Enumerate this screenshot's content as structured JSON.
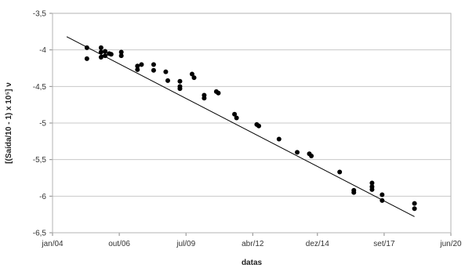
{
  "chart_data": {
    "type": "scatter",
    "xlabel": "datas",
    "ylabel": "[(Saída/10 - 1) x 10⁵] ν",
    "x_ticks": [
      "jan/04",
      "out/06",
      "jul/09",
      "abr/12",
      "dez/14",
      "set/17",
      "jun/20"
    ],
    "x_range": [
      "jan/04",
      "jun/20"
    ],
    "y_ticks": [
      "-3,5",
      "-4",
      "-4,5",
      "-5",
      "-5,5",
      "-6",
      "-6,5"
    ],
    "y_tick_values": [
      -3.5,
      -4,
      -4.5,
      -5,
      -5.5,
      -6,
      -6.5
    ],
    "ylim": [
      -6.5,
      -3.5
    ],
    "grid": "horizontal",
    "legend": "none",
    "point_color": "#000000",
    "trendline": {
      "start": {
        "x": "2004-08",
        "y": -3.82
      },
      "end": {
        "x": "2018-12",
        "y": -6.28
      },
      "color": "#000000"
    },
    "points": [
      {
        "x": "2005-06",
        "y": -3.97
      },
      {
        "x": "2005-06",
        "y": -4.12
      },
      {
        "x": "2006-01",
        "y": -3.97
      },
      {
        "x": "2006-01",
        "y": -4.03
      },
      {
        "x": "2006-01",
        "y": -4.1
      },
      {
        "x": "2006-03",
        "y": -4.02
      },
      {
        "x": "2006-03",
        "y": -4.08
      },
      {
        "x": "2006-05",
        "y": -4.05
      },
      {
        "x": "2006-06",
        "y": -4.06
      },
      {
        "x": "2006-11",
        "y": -4.03
      },
      {
        "x": "2006-11",
        "y": -4.08
      },
      {
        "x": "2007-07",
        "y": -4.22
      },
      {
        "x": "2007-07",
        "y": -4.27
      },
      {
        "x": "2007-09",
        "y": -4.2
      },
      {
        "x": "2008-03",
        "y": -4.2
      },
      {
        "x": "2008-03",
        "y": -4.28
      },
      {
        "x": "2008-09",
        "y": -4.3
      },
      {
        "x": "2008-10",
        "y": -4.42
      },
      {
        "x": "2009-04",
        "y": -4.43
      },
      {
        "x": "2009-04",
        "y": -4.5
      },
      {
        "x": "2009-04",
        "y": -4.53
      },
      {
        "x": "2009-10",
        "y": -4.33
      },
      {
        "x": "2009-11",
        "y": -4.38
      },
      {
        "x": "2010-04",
        "y": -4.62
      },
      {
        "x": "2010-04",
        "y": -4.66
      },
      {
        "x": "2010-10",
        "y": -4.57
      },
      {
        "x": "2010-11",
        "y": -4.59
      },
      {
        "x": "2011-07",
        "y": -4.88
      },
      {
        "x": "2011-08",
        "y": -4.93
      },
      {
        "x": "2012-06",
        "y": -5.02
      },
      {
        "x": "2012-07",
        "y": -5.04
      },
      {
        "x": "2013-05",
        "y": -5.22
      },
      {
        "x": "2014-02",
        "y": -5.4
      },
      {
        "x": "2014-08",
        "y": -5.42
      },
      {
        "x": "2014-09",
        "y": -5.45
      },
      {
        "x": "2015-11",
        "y": -5.67
      },
      {
        "x": "2016-06",
        "y": -5.92
      },
      {
        "x": "2016-06",
        "y": -5.95
      },
      {
        "x": "2017-03",
        "y": -5.82
      },
      {
        "x": "2017-03",
        "y": -5.87
      },
      {
        "x": "2017-03",
        "y": -5.91
      },
      {
        "x": "2017-08",
        "y": -5.98
      },
      {
        "x": "2017-08",
        "y": -6.06
      },
      {
        "x": "2018-12",
        "y": -6.1
      },
      {
        "x": "2018-12",
        "y": -6.17
      }
    ]
  }
}
